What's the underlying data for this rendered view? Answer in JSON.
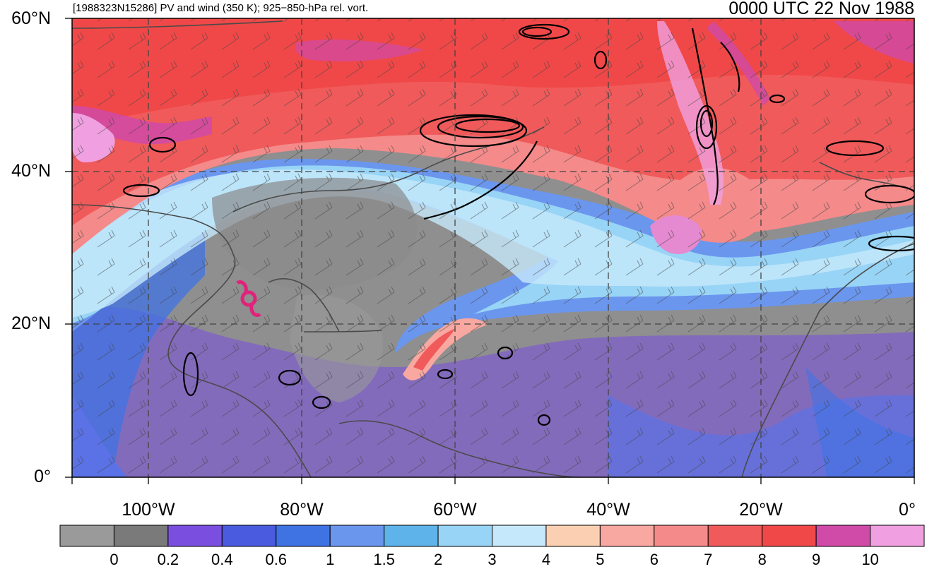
{
  "header": {
    "left_title": "[1988323N15286] PV and wind (350 K); 925−850-hPa rel. vort.",
    "right_title": "0000 UTC 22 Nov 1988"
  },
  "map": {
    "projection": "cylindrical equidistant",
    "lon_range": [
      -110,
      0
    ],
    "lat_range": [
      0,
      60
    ],
    "lat_ticks": [
      {
        "value": 60,
        "label": "60°N"
      },
      {
        "value": 40,
        "label": "40°N"
      },
      {
        "value": 20,
        "label": "20°N"
      },
      {
        "value": 0,
        "label": "0°"
      }
    ],
    "lon_ticks": [
      {
        "value": -100,
        "label": "100°W"
      },
      {
        "value": -80,
        "label": "80°W"
      },
      {
        "value": -60,
        "label": "60°W"
      },
      {
        "value": -40,
        "label": "40°W"
      },
      {
        "value": -20,
        "label": "20°W"
      },
      {
        "value": 0,
        "label": "0°"
      }
    ],
    "gridlines": "dashed",
    "storm_marker": {
      "lon": -86,
      "lat": 23,
      "color": "#e0237a",
      "icon": "tropical-cyclone-icon"
    }
  },
  "colorbar": {
    "labels": [
      "0",
      "0.2",
      "0.4",
      "0.6",
      "1",
      "1.5",
      "2",
      "3",
      "4",
      "5",
      "6",
      "7",
      "8",
      "9",
      "10"
    ],
    "colors": [
      "#9a9a9a",
      "#7a7a7a",
      "#7a4fe0",
      "#4a5be0",
      "#3f73e4",
      "#6b96ee",
      "#5eb4ea",
      "#98d4f6",
      "#c6e8fb",
      "#fbd0b2",
      "#f8a8a0",
      "#f48a8a",
      "#f05a5a",
      "#f04848",
      "#d04aa8",
      "#f0a0e0"
    ]
  },
  "chart_data": {
    "type": "heatmap",
    "title": "[1988323N15286] PV and wind (350 K); 925−850-hPa rel. vort.",
    "subtitle": "0000 UTC 22 Nov 1988",
    "x_range": [
      -110,
      0
    ],
    "y_range": [
      0,
      60
    ],
    "color_levels": [
      0,
      0.2,
      0.4,
      0.6,
      1,
      1.5,
      2,
      3,
      4,
      5,
      6,
      7,
      8,
      9,
      10
    ]
  }
}
